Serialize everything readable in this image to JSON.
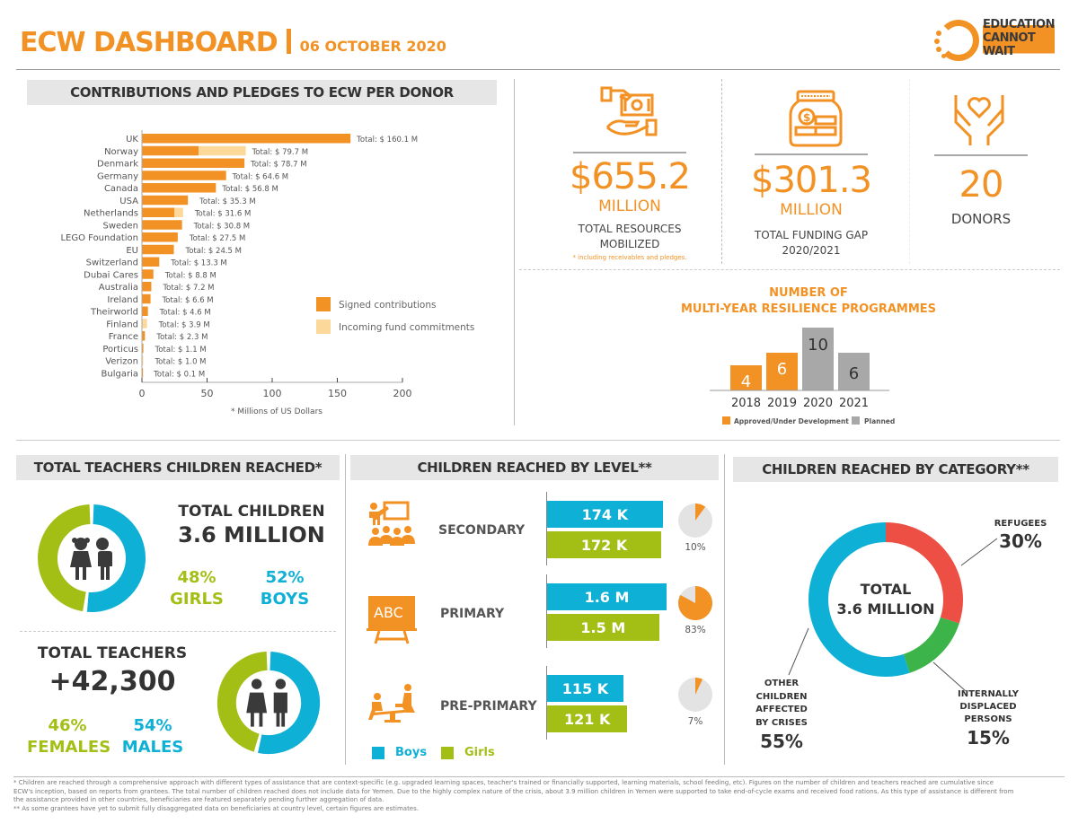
{
  "header": {
    "title": "ECW DASHBOARD",
    "date": "06 OCTOBER 2020",
    "logo_lines": [
      "EDUCATION",
      "CANNOT",
      "WAIT"
    ]
  },
  "colors": {
    "orange": "#f39224",
    "light_orange": "#fcd99b",
    "grey": "#a8a8a8",
    "blue": "#0fb0d6",
    "green": "#a3bf16",
    "red": "#ee4f45",
    "idp_green": "#3cb44a",
    "section_bg": "#e6e6e6"
  },
  "donors": {
    "section_title": "CONTRIBUTIONS AND PLEDGES TO ECW PER DONOR",
    "footnote": "* Millions of US Dollars",
    "legend": [
      "Signed contributions",
      "Incoming fund commitments"
    ]
  },
  "kpis": [
    {
      "icon": "money-hand-icon",
      "value": "$655.2",
      "unit": "MILLION",
      "label_lines": [
        "TOTAL RESOURCES",
        "MOBILIZED"
      ],
      "note": "* including receivables and pledges."
    },
    {
      "icon": "coin-jar-icon",
      "value": "$301.3",
      "unit": "MILLION",
      "label_lines": [
        "TOTAL FUNDING GAP",
        "2020/2021"
      ]
    },
    {
      "icon": "heart-hands-icon",
      "value": "20",
      "label_lines": [
        "DONORS"
      ]
    }
  ],
  "myrp": {
    "title_lines": [
      "NUMBER OF",
      "MULTI-YEAR RESILIENCE PROGRAMMES"
    ],
    "legend": [
      "Approved/Under Development",
      "Planned"
    ]
  },
  "teachers_children": {
    "section_title": "TOTAL TEACHERS CHILDREN REACHED*",
    "children_label": "TOTAL CHILDREN",
    "children_value": "3.6 MILLION",
    "girls_pct": "48%",
    "girls_label": "GIRLS",
    "boys_pct": "52%",
    "boys_label": "BOYS",
    "girls_share": 48,
    "boys_share": 52,
    "teachers_label": "TOTAL TEACHERS",
    "teachers_value": "+42,300",
    "females_pct": "46%",
    "females_label": "FEMALES",
    "males_pct": "54%",
    "males_label": "MALES",
    "females_share": 46,
    "males_share": 54
  },
  "levels": {
    "section_title": "CHILDREN REACHED BY LEVEL**",
    "legend": [
      "Boys",
      "Girls"
    ],
    "items": [
      {
        "name": "SECONDARY",
        "icon": "teacher-class-icon",
        "boys": "174 K",
        "girls": "172 K",
        "boys_value": 174,
        "girls_value": 172,
        "pct": "10%",
        "share": 10
      },
      {
        "name": "PRIMARY",
        "icon": "abc-board-icon",
        "boys": "1.6 M",
        "girls": "1.5 M",
        "boys_value": 1600,
        "girls_value": 1500,
        "pct": "83%",
        "share": 83
      },
      {
        "name": "PRE-PRIMARY",
        "icon": "seesaw-icon",
        "boys": "115 K",
        "girls": "121 K",
        "boys_value": 115,
        "girls_value": 121,
        "pct": "7%",
        "share": 7
      }
    ]
  },
  "category": {
    "section_title": "CHILDREN REACHED BY CATEGORY**",
    "center_lines": [
      "TOTAL",
      "3.6 MILLION"
    ],
    "items": [
      {
        "label_lines": [
          "REFUGEES"
        ],
        "pct": "30%"
      },
      {
        "label_lines": [
          "INTERNALLY",
          "DISPLACED",
          "PERSONS"
        ],
        "pct": "15%"
      },
      {
        "label_lines": [
          "OTHER",
          "CHILDREN",
          "AFFECTED",
          "BY CRISES"
        ],
        "pct": "55%"
      }
    ]
  },
  "footnotes": [
    "* Children are reached through a comprehensive approach with different types of assistance that are context-specific (e.g. upgraded learning spaces, teacher's trained or financially supported, learning materials, school feeding, etc). Figures on the number of children and teachers reached are cumulative since",
    "ECW's inception, based on reports from grantees. The total number of children reached does not include data for Yemen. Due to the highly complex nature of the crisis, about 3.9 million children in Yemen were supported to take end-of-cycle exams and received food rations. As this type of assistance is different from",
    "the assistance provided in other countries, beneficiaries are featured separately pending further aggregation of data.",
    "** As some grantees have yet to submit fully disaggregated data on beneficiaries at country level, certain figures are estimates."
  ],
  "chart_data": [
    {
      "type": "bar",
      "orientation": "horizontal",
      "stacked": true,
      "title": "CONTRIBUTIONS AND PLEDGES TO ECW PER DONOR",
      "xlabel": "* Millions of US Dollars",
      "xlim": [
        0,
        200
      ],
      "xticks": [
        0,
        50,
        100,
        150,
        200
      ],
      "categories": [
        "UK",
        "Norway",
        "Denmark",
        "Germany",
        "Canada",
        "USA",
        "Netherlands",
        "Sweden",
        "LEGO Foundation",
        "EU",
        "Switzerland",
        "Dubai Cares",
        "Australia",
        "Ireland",
        "Theirworld",
        "Finland",
        "France",
        "Porticus",
        "Verizon",
        "Bulgaria"
      ],
      "series": [
        {
          "name": "Signed contributions",
          "values": [
            160.1,
            43.5,
            78.7,
            64.6,
            56.8,
            35.3,
            25.0,
            30.8,
            27.5,
            24.5,
            13.3,
            8.8,
            7.2,
            6.6,
            4.6,
            0,
            2.3,
            1.1,
            0,
            0.1
          ]
        },
        {
          "name": "Incoming fund commitments",
          "values": [
            0,
            36.2,
            0,
            0,
            0,
            0,
            6.6,
            0,
            0,
            0,
            0,
            0,
            0,
            0,
            0,
            3.9,
            0,
            0,
            1.0,
            0
          ]
        }
      ],
      "data_labels": [
        "Total: $ 160.1 M",
        "Total: $ 79.7 M",
        "Total: $ 78.7 M",
        "Total: $ 64.6 M",
        "Total: $ 56.8 M",
        "Total: $ 35.3 M",
        "Total: $ 31.6 M",
        "Total: $ 30.8 M",
        "Total: $ 27.5 M",
        "Total: $ 24.5 M",
        "Total: $ 13.3 M",
        "Total: $ 8.8 M",
        "Total: $ 7.2 M",
        "Total: $ 6.6 M",
        "Total: $ 4.6 M",
        "Total: $ 3.9 M",
        "Total: $ 2.3 M",
        "Total: $ 1.1 M",
        "Total: $ 1.0 M",
        "Total: $ 0.1 M"
      ],
      "legend_position": "right"
    },
    {
      "type": "bar",
      "title": "NUMBER OF MULTI-YEAR RESILIENCE PROGRAMMES",
      "categories": [
        "2018",
        "2019",
        "2020",
        "2021"
      ],
      "values": [
        4,
        6,
        10,
        6
      ],
      "status": [
        "Approved/Under Development",
        "Approved/Under Development",
        "Planned",
        "Planned"
      ],
      "ylim": [
        0,
        10
      ],
      "legend_position": "bottom"
    },
    {
      "type": "pie",
      "title": "CHILDREN REACHED BY CATEGORY**",
      "donut": true,
      "labels": [
        "Refugees",
        "Internally Displaced Persons",
        "Other Children Affected by Crises"
      ],
      "values": [
        30,
        15,
        55
      ]
    }
  ]
}
